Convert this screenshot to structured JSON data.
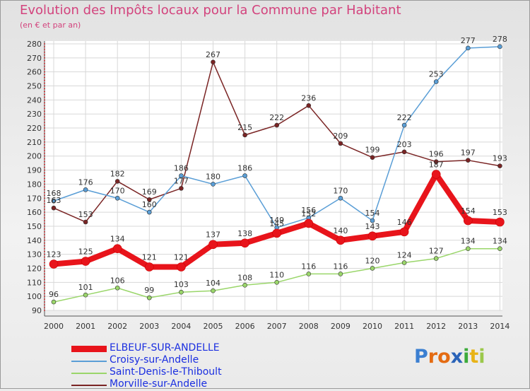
{
  "title": "Evolution des Impôts locaux pour la Commune par Habitant",
  "subtitle": "(en € et par an)",
  "logo": {
    "chars": [
      "P",
      "r",
      "o",
      "x",
      "i",
      "t",
      "i"
    ],
    "colors": [
      "#3b7fd1",
      "#e46b12",
      "#e46b12",
      "#2a63b8",
      "#3cab3a",
      "#e8b317",
      "#9bc84a"
    ]
  },
  "chart_data": {
    "type": "line",
    "x": [
      "2000",
      "2001",
      "2002",
      "2003",
      "2004",
      "2005",
      "2006",
      "2007",
      "2008",
      "2009",
      "2010",
      "2011",
      "2012",
      "2013",
      "2014"
    ],
    "ylim": [
      90,
      280
    ],
    "yticks": [
      "90",
      "100",
      "110",
      "120",
      "130",
      "140",
      "150",
      "160",
      "170",
      "180",
      "190",
      "200",
      "210",
      "220",
      "230",
      "240",
      "250",
      "260",
      "270",
      "280"
    ],
    "grid": true,
    "legend_position": "bottom-left",
    "series": [
      {
        "name": "ELBEUF-SUR-ANDELLE",
        "color": "#e8141b",
        "label_color": "#1a2ee0",
        "width": 8,
        "values": [
          123,
          125,
          134,
          121,
          121,
          137,
          138,
          145,
          152,
          140,
          143,
          146,
          187,
          154,
          153
        ]
      },
      {
        "name": "Croisy-sur-Andelle",
        "color": "#5a9ed6",
        "label_color": "#1a2ee0",
        "width": 1.5,
        "values": [
          168,
          176,
          170,
          160,
          186,
          180,
          186,
          149,
          156,
          170,
          154,
          222,
          253,
          277,
          278
        ]
      },
      {
        "name": "Saint-Denis-le-Thiboult",
        "color": "#9ad66a",
        "label_color": "#1a2ee0",
        "width": 1.5,
        "values": [
          96,
          101,
          106,
          99,
          103,
          104,
          108,
          110,
          116,
          116,
          120,
          124,
          127,
          134,
          134
        ]
      },
      {
        "name": "Morville-sur-Andelle",
        "color": "#7a2424",
        "label_color": "#1a2ee0",
        "width": 1.5,
        "values": [
          163,
          153,
          182,
          169,
          177,
          267,
          215,
          222,
          236,
          209,
          199,
          203,
          196,
          197,
          193
        ]
      }
    ],
    "data_labels": [
      {
        "series": 0,
        "text": [
          "123",
          "125",
          "134",
          "121",
          "121",
          "137",
          "138",
          "145",
          "152",
          "140",
          "143",
          "146",
          "187",
          "154",
          "153"
        ]
      },
      {
        "series": 1,
        "text": [
          "168",
          "176",
          "170",
          "160",
          "186",
          "180",
          "186",
          "149",
          "156",
          "170",
          "154",
          "222",
          "253",
          "277",
          "278"
        ]
      },
      {
        "series": 2,
        "text": [
          "96",
          "101",
          "106",
          "99",
          "103",
          "104",
          "108",
          "110",
          "116",
          "116",
          "120",
          "124",
          "127",
          "134",
          "134"
        ]
      },
      {
        "series": 3,
        "text": [
          "163",
          "153",
          "182",
          "169",
          "177",
          "267",
          "215",
          "222",
          "236",
          "209",
          "199",
          "203",
          "196",
          "197",
          "193"
        ]
      }
    ]
  }
}
